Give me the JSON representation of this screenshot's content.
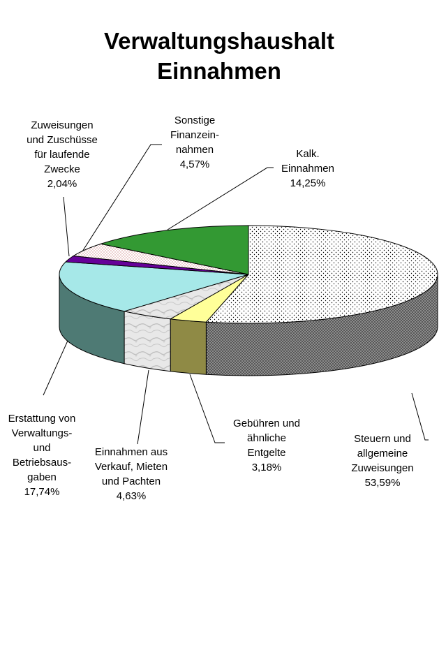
{
  "chart_data": {
    "type": "pie",
    "title": [
      "Verwaltungshaushalt",
      "Einnahmen"
    ],
    "slices": [
      {
        "label_lines": [
          "Steuern und",
          "allgemeine",
          "Zuweisungen"
        ],
        "value_text": "53,59%",
        "value": 53.59,
        "color": "#ffffff",
        "pattern": "dots"
      },
      {
        "label_lines": [
          "Gebühren und",
          "ähnliche",
          "Entgelte"
        ],
        "value_text": "3,18%",
        "value": 3.18,
        "color": "#ffff99",
        "pattern": "none"
      },
      {
        "label_lines": [
          "Einnahmen aus",
          "Verkauf, Mieten",
          "und Pachten"
        ],
        "value_text": "4,63%",
        "value": 4.63,
        "color": "#e6e6e6",
        "pattern": "marble"
      },
      {
        "label_lines": [
          "Erstattung von",
          "Verwaltungs-",
          "und",
          "Betriebsaus-",
          "gaben"
        ],
        "value_text": "17,74%",
        "value": 17.74,
        "color": "#a6e8e8",
        "pattern": "none"
      },
      {
        "label_lines": [
          "Zuweisungen",
          "und Zuschüsse",
          "für laufende",
          "Zwecke"
        ],
        "value_text": "2,04%",
        "value": 2.04,
        "color": "#660099",
        "pattern": "none"
      },
      {
        "label_lines": [
          "Sonstige",
          "Finanzein-",
          "nahmen"
        ],
        "value_text": "4,57%",
        "value": 4.57,
        "color": "#ffffff",
        "pattern": "fine"
      },
      {
        "label_lines": [
          "Kalk.",
          "Einnahmen"
        ],
        "value_text": "14,25%",
        "value": 14.25,
        "color": "#339933",
        "pattern": "none"
      }
    ]
  }
}
